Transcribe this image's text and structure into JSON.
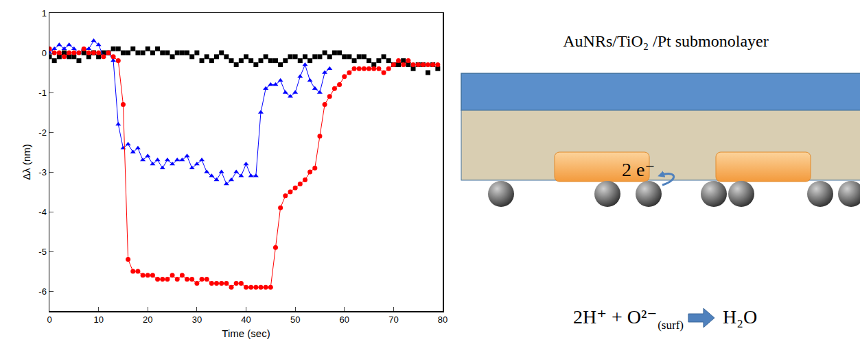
{
  "chart_data": {
    "type": "scatter",
    "x_label": "Time (sec)",
    "y_label": "Δλ (nm)",
    "xlim": [
      0,
      80
    ],
    "xticks": [
      0,
      10,
      20,
      30,
      40,
      50,
      60,
      70,
      80
    ],
    "ylim": [
      -6.5,
      1
    ],
    "yticks": [
      -6,
      -5,
      -4,
      -3,
      -2,
      -1,
      0,
      1
    ],
    "grid": false,
    "series": [
      {
        "color": "#000000",
        "marker": "square",
        "line_style": "none",
        "x": [
          0,
          1,
          2,
          3,
          4,
          5,
          6,
          7,
          8,
          9,
          10,
          11,
          12,
          13,
          14,
          15,
          16,
          17,
          18,
          19,
          20,
          21,
          22,
          23,
          24,
          25,
          26,
          27,
          28,
          29,
          30,
          31,
          32,
          33,
          34,
          35,
          36,
          37,
          38,
          39,
          40,
          41,
          42,
          43,
          44,
          45,
          46,
          47,
          48,
          49,
          50,
          51,
          52,
          53,
          54,
          55,
          56,
          57,
          58,
          59,
          60,
          61,
          62,
          63,
          64,
          65,
          66,
          67,
          68,
          69,
          70,
          71,
          72,
          73,
          74,
          75,
          76,
          77,
          78,
          79
        ],
        "values": [
          -0.1,
          -0.2,
          -0.1,
          0,
          -0.1,
          -0.1,
          -0.2,
          0,
          -0.1,
          0,
          -0.1,
          0,
          0,
          0.1,
          0.1,
          0,
          0,
          0.1,
          0,
          0,
          0.1,
          0,
          0.1,
          0,
          0,
          -0.1,
          0,
          0,
          0,
          -0.1,
          0,
          -0.2,
          -0.1,
          -0.2,
          -0.1,
          0,
          -0.1,
          -0.2,
          -0.3,
          -0.2,
          -0.1,
          -0.2,
          -0.3,
          -0.2,
          -0.1,
          -0.2,
          -0.2,
          -0.3,
          -0.2,
          -0.1,
          -0.1,
          -0.2,
          -0.1,
          -0.2,
          -0.1,
          -0.1,
          0,
          -0.1,
          0,
          0,
          -0.1,
          -0.1,
          -0.2,
          -0.1,
          -0.1,
          -0.2,
          -0.3,
          -0.2,
          -0.1,
          -0.2,
          -0.3,
          -0.3,
          -0.2,
          -0.3,
          -0.4,
          -0.3,
          -0.3,
          -0.5,
          -0.3,
          -0.4
        ]
      },
      {
        "color": "#0000ff",
        "marker": "triangle-up",
        "line_style": "solid",
        "x": [
          0,
          1,
          2,
          3,
          4,
          5,
          6,
          7,
          8,
          9,
          10,
          11,
          12,
          13,
          14,
          15,
          16,
          17,
          18,
          19,
          20,
          21,
          22,
          23,
          24,
          25,
          26,
          27,
          28,
          29,
          30,
          31,
          32,
          33,
          34,
          35,
          36,
          37,
          38,
          39,
          40,
          41,
          42,
          43,
          44,
          45,
          46,
          47,
          48,
          49,
          50,
          51,
          52,
          53,
          54,
          55,
          56,
          57
        ],
        "values": [
          0,
          0.1,
          0.2,
          0.1,
          0.2,
          0.1,
          0,
          0.1,
          0.1,
          0.3,
          0.2,
          -0.1,
          0,
          -0.2,
          -1.8,
          -2.4,
          -2.3,
          -2.5,
          -2.4,
          -2.7,
          -2.6,
          -2.8,
          -2.7,
          -2.9,
          -2.7,
          -2.8,
          -2.7,
          -2.7,
          -2.6,
          -2.9,
          -2.8,
          -2.7,
          -3.0,
          -3.1,
          -3.2,
          -3.0,
          -3.3,
          -3.2,
          -3.0,
          -3.1,
          -2.8,
          -3.1,
          -3.1,
          -1.5,
          -0.9,
          -0.8,
          -0.8,
          -0.7,
          -1.0,
          -1.1,
          -1.0,
          -0.6,
          -0.3,
          -0.7,
          -0.9,
          -1.0,
          -0.5,
          -0.4
        ]
      },
      {
        "color": "#ff0000",
        "marker": "circle",
        "line_style": "solid",
        "x": [
          0,
          1,
          2,
          3,
          4,
          5,
          6,
          7,
          8,
          9,
          10,
          11,
          12,
          13,
          14,
          15,
          16,
          17,
          18,
          19,
          20,
          21,
          22,
          23,
          24,
          25,
          26,
          27,
          28,
          29,
          30,
          31,
          32,
          33,
          34,
          35,
          36,
          37,
          38,
          39,
          40,
          41,
          42,
          43,
          44,
          45,
          46,
          47,
          48,
          49,
          50,
          51,
          52,
          53,
          54,
          55,
          56,
          57,
          58,
          59,
          60,
          61,
          62,
          63,
          64,
          65,
          66,
          67,
          68,
          69,
          70,
          71,
          72,
          73,
          74,
          75,
          76,
          77,
          78,
          79
        ],
        "values": [
          0.1,
          0,
          0,
          -0.1,
          0,
          0,
          0,
          0.1,
          0,
          0,
          0,
          -0.1,
          0,
          -0.1,
          -0.2,
          -1.3,
          -5.2,
          -5.5,
          -5.5,
          -5.6,
          -5.6,
          -5.6,
          -5.7,
          -5.7,
          -5.7,
          -5.6,
          -5.7,
          -5.6,
          -5.7,
          -5.7,
          -5.8,
          -5.7,
          -5.7,
          -5.8,
          -5.8,
          -5.8,
          -5.8,
          -5.9,
          -5.8,
          -5.8,
          -5.9,
          -5.9,
          -5.9,
          -5.9,
          -5.9,
          -5.9,
          -4.9,
          -3.9,
          -3.6,
          -3.5,
          -3.4,
          -3.3,
          -3.2,
          -3.0,
          -2.9,
          -2.1,
          -1.3,
          -1.1,
          -0.9,
          -0.8,
          -0.6,
          -0.5,
          -0.4,
          -0.4,
          -0.4,
          -0.4,
          -0.4,
          -0.4,
          -0.5,
          -0.4,
          -0.3,
          -0.2,
          -0.3,
          -0.2,
          -0.3,
          -0.3,
          -0.3,
          -0.3,
          -0.3,
          -0.3
        ]
      }
    ]
  },
  "diagram": {
    "title": "AuNRs/TiO₂ /Pt submonolayer",
    "electron_label": "2 e⁻",
    "reaction": {
      "reactants": "2H⁺ + O²⁻",
      "reactant_subscript": "(surf)",
      "product": "H₂O"
    }
  }
}
